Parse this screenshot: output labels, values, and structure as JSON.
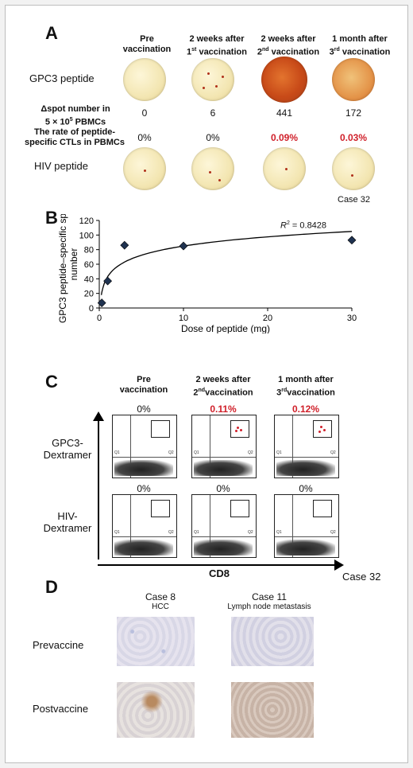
{
  "panel_a": {
    "label": "A",
    "columns": [
      {
        "line1": "Pre",
        "line2": "vaccination"
      },
      {
        "line1": "2 weeks after",
        "line2a": "1",
        "sup": "st",
        "line2b": " vaccination"
      },
      {
        "line1": "2 weeks after",
        "line2a": "2",
        "sup": "nd",
        "line2b": " vaccination"
      },
      {
        "line1": "1 month after",
        "line2a": "3",
        "sup": "rd",
        "line2b": " vaccination"
      }
    ],
    "row_gpc3": "GPC3 peptide",
    "row_delta_l1": "Δspot number in",
    "row_delta_l2": "5 × 10",
    "row_delta_sup": "5",
    "row_delta_l3": " PBMCs",
    "delta_values": [
      "0",
      "6",
      "441",
      "172"
    ],
    "row_rate_l1": "The rate of peptide-",
    "row_rate_l2": "specific CTLs in PBMCs",
    "rate_values": [
      "0%",
      "0%",
      "0.09%",
      "0.03%"
    ],
    "row_hiv": "HIV peptide",
    "case": "Case 32"
  },
  "panel_b": {
    "label": "B",
    "r2_label": "R",
    "r2_sup": "2",
    "r2_value": " = 0.8428"
  },
  "chart_data": {
    "type": "scatter",
    "xlabel": "Dose of peptide (mg)",
    "ylabel": "GPC3 peptide–specific spot number",
    "xlim": [
      0,
      30
    ],
    "ylim": [
      0,
      120
    ],
    "x_ticks": [
      0,
      10,
      20,
      30
    ],
    "y_ticks": [
      0,
      20,
      40,
      60,
      80,
      100,
      120
    ],
    "points": [
      {
        "x": 0.3,
        "y": 7
      },
      {
        "x": 1,
        "y": 37
      },
      {
        "x": 3,
        "y": 86
      },
      {
        "x": 10,
        "y": 85
      },
      {
        "x": 30,
        "y": 93
      }
    ],
    "fit": "logarithmic",
    "r_squared": 0.8428
  },
  "panel_c": {
    "label": "C",
    "columns": [
      {
        "line1": "Pre",
        "line2": "vaccination"
      },
      {
        "line1": "2 weeks after",
        "line2a": "2",
        "sup": "nd",
        "line2b": "vaccination"
      },
      {
        "line1": "1 month after",
        "line2a": "3",
        "sup": "rd",
        "line2b": "vaccination"
      }
    ],
    "row1_l1": "GPC3-",
    "row1_l2": "Dextramer",
    "row2_l1": "HIV-",
    "row2_l2": "Dextramer",
    "row1_pcts": [
      "0%",
      "0.11%",
      "0.12%"
    ],
    "row2_pcts": [
      "0%",
      "0%",
      "0%"
    ],
    "x_axis": "CD8",
    "case": "Case 32",
    "colors": {
      "highlight": "#d0202a"
    }
  },
  "panel_d": {
    "label": "D",
    "col1_title": "Case 8",
    "col1_sub": "HCC",
    "col2_title": "Case 11",
    "col2_sub": "Lymph node metastasis",
    "row1": "Prevaccine",
    "row2": "Postvaccine"
  }
}
